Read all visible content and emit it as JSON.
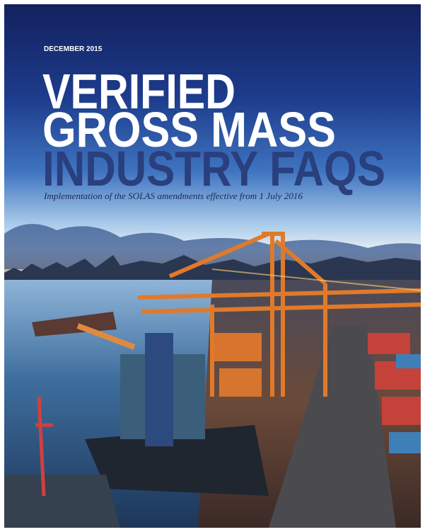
{
  "header": {
    "date": "DECEMBER 2015"
  },
  "title": {
    "lines": [
      "VERIFIED",
      "GROSS MASS",
      "INDUSTRY FAQS"
    ]
  },
  "subtitle": "Implementation of the SOLAS amendments effective from 1 July 2016"
}
